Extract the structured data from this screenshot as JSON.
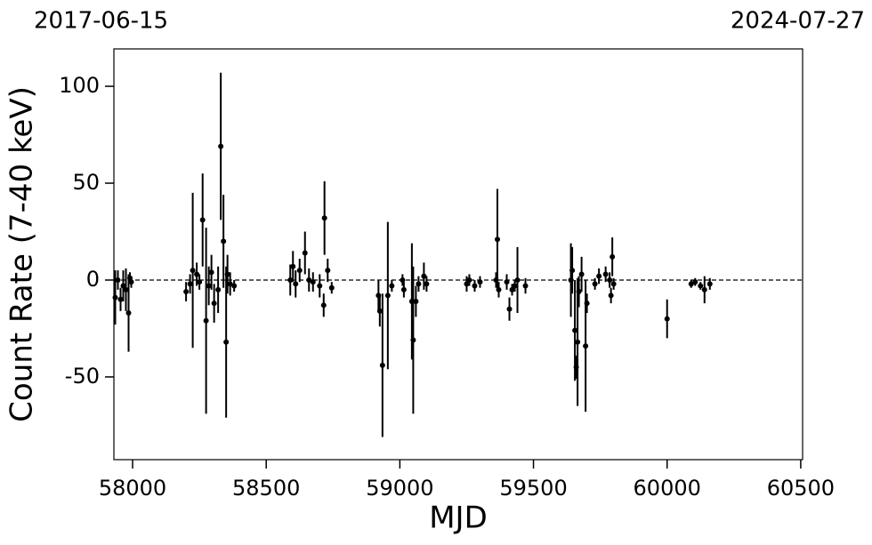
{
  "chart_data": {
    "type": "scatter",
    "annotations": [
      "2017-06-15",
      "2024-07-27"
    ],
    "xlabel": "MJD",
    "ylabel": "Count Rate (7-40 keV)",
    "xlim": [
      57930,
      60507
    ],
    "ylim": [
      -92.7,
      119.3
    ],
    "xticks": [
      58000,
      58500,
      59000,
      59500,
      60000,
      60500
    ],
    "yticks": [
      -50,
      0,
      50,
      100
    ],
    "hline": 0,
    "color": "#000000",
    "x": [
      57935,
      57945,
      57955,
      57965,
      57975,
      57985,
      57990,
      57995,
      58200,
      58215,
      58225,
      58240,
      58250,
      58262,
      58275,
      58285,
      58295,
      58305,
      58320,
      58330,
      58340,
      58350,
      58355,
      58365,
      58380,
      58590,
      58600,
      58610,
      58625,
      58645,
      58660,
      58675,
      58700,
      58715,
      58718,
      58730,
      58745,
      58920,
      58925,
      58935,
      58955,
      58970,
      59010,
      59015,
      59045,
      59050,
      59060,
      59070,
      59090,
      59100,
      59250,
      59260,
      59280,
      59300,
      59360,
      59365,
      59370,
      59400,
      59410,
      59420,
      59430,
      59440,
      59470,
      59640,
      59645,
      59655,
      59660,
      59665,
      59670,
      59680,
      59695,
      59700,
      59730,
      59745,
      59770,
      59785,
      59790,
      59795,
      59800,
      60000,
      60090,
      60105,
      60125,
      60140,
      60160
    ],
    "values": [
      -9,
      0,
      -10,
      -3,
      -5,
      -17,
      1,
      -1,
      -6,
      -2,
      5,
      3,
      -1,
      31,
      -21,
      -3,
      4,
      -12,
      -5,
      69,
      20,
      -32,
      3,
      -2,
      -3,
      0,
      7,
      -2,
      5,
      14,
      0,
      -1,
      -3,
      -13,
      32,
      5,
      -4,
      -8,
      -16,
      -44,
      -8,
      -3,
      0,
      -5,
      -11,
      -31,
      -11,
      -2,
      2,
      -2,
      -2,
      0,
      -3,
      -1,
      0,
      21,
      -5,
      -1,
      -15,
      -5,
      -3,
      0,
      -3,
      0,
      5,
      -26,
      -45,
      -32,
      -6,
      3,
      -34,
      -12,
      -2,
      2,
      3,
      0,
      -8,
      12,
      -2,
      -20,
      -2,
      -1,
      -3,
      -5,
      -2
    ],
    "errors": [
      14,
      5,
      6,
      8,
      11,
      20,
      3,
      3,
      5,
      5,
      40,
      6,
      4,
      24,
      48,
      10,
      9,
      10,
      12,
      38,
      24,
      39,
      10,
      6,
      3,
      8,
      8,
      7,
      6,
      11,
      6,
      5,
      6,
      6,
      19,
      6,
      3,
      8,
      8,
      37,
      38,
      3,
      3,
      4,
      30,
      38,
      8,
      4,
      7,
      4,
      4,
      3,
      3,
      3,
      4,
      26,
      4,
      4,
      6,
      3,
      3,
      17,
      4,
      19,
      12,
      26,
      6,
      33,
      8,
      9,
      34,
      5,
      3,
      4,
      4,
      4,
      4,
      10,
      3,
      10,
      2,
      2,
      2,
      7,
      3
    ]
  }
}
